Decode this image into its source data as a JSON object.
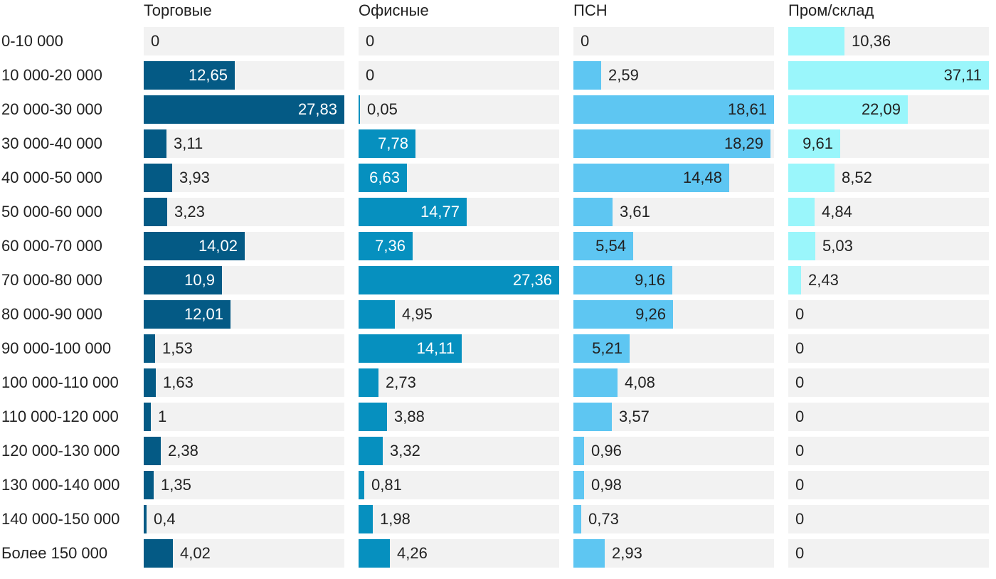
{
  "chart_data": {
    "type": "bar",
    "orientation": "horizontal",
    "layout": "small-multiples",
    "categories": [
      "0-10 000",
      "10 000-20 000",
      "20 000-30 000",
      "30 000-40 000",
      "40 000-50 000",
      "50 000-60 000",
      "60 000-70 000",
      "70 000-80 000",
      "80 000-90 000",
      "90 000-100 000",
      "100 000-110 000",
      "110 000-120 000",
      "120 000-130 000",
      "130 000-140 000",
      "140 000-150 000",
      "Более 150 000"
    ],
    "series": [
      {
        "name": "Торговые",
        "color": "#045a85",
        "label_color_inside": "#ffffff",
        "xlim": [
          0,
          27.83
        ],
        "values": [
          0,
          12.65,
          27.83,
          3.11,
          3.93,
          3.23,
          14.02,
          10.9,
          12.01,
          1.53,
          1.63,
          1,
          2.38,
          1.35,
          0.4,
          4.02
        ],
        "labels": [
          "0",
          "12,65",
          "27,83",
          "3,11",
          "3,93",
          "3,23",
          "14,02",
          "10,9",
          "12,01",
          "1,53",
          "1,63",
          "1",
          "2,38",
          "1,35",
          "0,4",
          "4,02"
        ]
      },
      {
        "name": "Офисные",
        "color": "#0690bf",
        "label_color_inside": "#ffffff",
        "xlim": [
          0,
          27.36
        ],
        "values": [
          0,
          0,
          0.05,
          7.78,
          6.63,
          14.77,
          7.36,
          27.36,
          4.95,
          14.11,
          2.73,
          3.88,
          3.32,
          0.81,
          1.98,
          4.26
        ],
        "labels": [
          "0",
          "0",
          "0,05",
          "7,78",
          "6,63",
          "14,77",
          "7,36",
          "27,36",
          "4,95",
          "14,11",
          "2,73",
          "3,88",
          "3,32",
          "0,81",
          "1,98",
          "4,26"
        ]
      },
      {
        "name": "ПСН",
        "color": "#5ec6f2",
        "label_color_inside": "#222222",
        "xlim": [
          0,
          18.61
        ],
        "values": [
          0,
          2.59,
          18.61,
          18.29,
          14.48,
          3.61,
          5.54,
          9.16,
          9.26,
          5.21,
          4.08,
          3.57,
          0.96,
          0.98,
          0.73,
          2.93
        ],
        "labels": [
          "0",
          "2,59",
          "18,61",
          "18,29",
          "14,48",
          "3,61",
          "5,54",
          "9,16",
          "9,26",
          "5,21",
          "4,08",
          "3,57",
          "0,96",
          "0,98",
          "0,73",
          "2,93"
        ]
      },
      {
        "name": "Пром/склад",
        "color": "#9af6fb",
        "label_color_inside": "#222222",
        "xlim": [
          0,
          37.11
        ],
        "values": [
          10.36,
          37.11,
          22.09,
          9.61,
          8.52,
          4.84,
          5.03,
          2.43,
          0,
          0,
          0,
          0,
          0,
          0,
          0,
          0
        ],
        "labels": [
          "10,36",
          "37,11",
          "22,09",
          "9,61",
          "8,52",
          "4,84",
          "5,03",
          "2,43",
          "0",
          "0",
          "0",
          "0",
          "0",
          "0",
          "0",
          "0"
        ]
      }
    ],
    "track_color": "#f2f2f2",
    "grid": false,
    "legend": "column titles at top"
  }
}
